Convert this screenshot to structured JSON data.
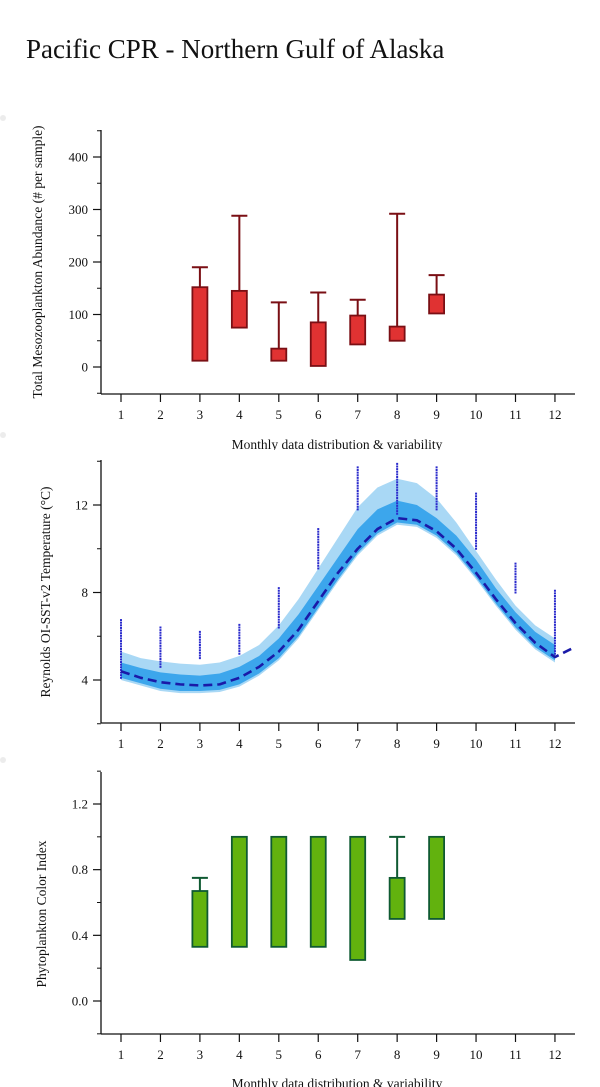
{
  "page": {
    "title": "Pacific CPR - Northern Gulf of Alaska"
  },
  "chart_data": [
    {
      "type": "box",
      "title": "",
      "ylabel": "Total Mesozooplankton Abundance (# per sample)",
      "xlabel": "Monthly data distribution & variability",
      "ylim": [
        -50,
        450
      ],
      "yticks": [
        0,
        100,
        200,
        300,
        400
      ],
      "categories": [
        "1",
        "2",
        "3",
        "4",
        "5",
        "6",
        "7",
        "8",
        "9",
        "10",
        "11",
        "12"
      ],
      "colors": {
        "fill": "#e03232",
        "stroke": "#7a0f14"
      },
      "boxes": [
        {
          "x": 3,
          "q1": 12,
          "q3": 152,
          "whisker_high": 190
        },
        {
          "x": 4,
          "q1": 75,
          "q3": 145,
          "whisker_high": 288
        },
        {
          "x": 5,
          "q1": 12,
          "q3": 35,
          "whisker_high": 123
        },
        {
          "x": 6,
          "q1": 2,
          "q3": 85,
          "whisker_high": 142
        },
        {
          "x": 7,
          "q1": 43,
          "q3": 98,
          "whisker_high": 128
        },
        {
          "x": 8,
          "q1": 50,
          "q3": 77,
          "whisker_high": 292
        },
        {
          "x": 9,
          "q1": 102,
          "q3": 138,
          "whisker_high": 175
        }
      ]
    },
    {
      "type": "line",
      "title": "",
      "ylabel": "Reynolds OI-SST-v2 Temperature (°C)",
      "xlabel": "",
      "ylim": [
        2,
        14
      ],
      "yticks": [
        4,
        8,
        12
      ],
      "categories": [
        "1",
        "2",
        "3",
        "4",
        "5",
        "6",
        "7",
        "8",
        "9",
        "10",
        "11",
        "12"
      ],
      "colors": {
        "outer_band": "#a9d8f5",
        "inner_band": "#3ca6ec",
        "mean_line": "#1a1aa8",
        "points": "#2b2bcc"
      },
      "mean": {
        "x": [
          1,
          1.5,
          2,
          2.5,
          3,
          3.5,
          4,
          4.5,
          5,
          5.5,
          6,
          6.5,
          7,
          7.5,
          8,
          8.5,
          9,
          9.5,
          10,
          10.5,
          11,
          11.5,
          12,
          12.5
        ],
        "y": [
          4.4,
          4.1,
          3.9,
          3.8,
          3.75,
          3.8,
          4.1,
          4.6,
          5.3,
          6.3,
          7.6,
          8.9,
          10.0,
          10.9,
          11.4,
          11.3,
          10.8,
          10.0,
          8.9,
          7.7,
          6.6,
          5.7,
          5.05,
          5.5
        ]
      },
      "inner_band": {
        "x": [
          1,
          1.5,
          2,
          2.5,
          3,
          3.5,
          4,
          4.5,
          5,
          5.5,
          6,
          6.5,
          7,
          7.5,
          8,
          8.5,
          9,
          9.5,
          10,
          10.5,
          11,
          11.5,
          12
        ],
        "low": [
          4.1,
          3.85,
          3.6,
          3.5,
          3.5,
          3.55,
          3.8,
          4.3,
          5.0,
          6.0,
          7.3,
          8.6,
          9.8,
          10.7,
          11.2,
          11.1,
          10.6,
          9.8,
          8.7,
          7.5,
          6.4,
          5.5,
          4.9
        ],
        "high": [
          4.8,
          4.55,
          4.35,
          4.25,
          4.2,
          4.3,
          4.6,
          5.1,
          5.9,
          7.0,
          8.3,
          9.6,
          10.9,
          11.8,
          12.2,
          12.0,
          11.4,
          10.6,
          9.5,
          8.2,
          7.1,
          6.2,
          5.6
        ]
      },
      "outer_band": {
        "x": [
          1,
          1.5,
          2,
          2.5,
          3,
          3.5,
          4,
          4.5,
          5,
          5.5,
          6,
          6.5,
          7,
          7.5,
          8,
          8.5,
          9,
          9.5,
          10,
          10.5,
          11,
          11.5,
          12
        ],
        "low": [
          4.0,
          3.75,
          3.5,
          3.4,
          3.4,
          3.45,
          3.7,
          4.2,
          4.9,
          5.9,
          7.2,
          8.5,
          9.7,
          10.6,
          11.1,
          11.0,
          10.5,
          9.7,
          8.6,
          7.4,
          6.3,
          5.4,
          4.8
        ],
        "high": [
          5.3,
          5.0,
          4.85,
          4.75,
          4.7,
          4.8,
          5.1,
          5.6,
          6.5,
          7.7,
          9.1,
          10.5,
          11.9,
          12.8,
          13.2,
          13.0,
          12.3,
          11.2,
          9.9,
          8.6,
          7.4,
          6.5,
          5.9
        ]
      },
      "observation_ranges": [
        {
          "x": 1,
          "low": 4.1,
          "high": 6.8
        },
        {
          "x": 2,
          "low": 4.6,
          "high": 6.4
        },
        {
          "x": 3,
          "low": 5.0,
          "high": 6.2
        },
        {
          "x": 4,
          "low": 5.2,
          "high": 6.6
        },
        {
          "x": 5,
          "low": 6.4,
          "high": 8.3
        },
        {
          "x": 6,
          "low": 9.1,
          "high": 10.9
        },
        {
          "x": 7,
          "low": 11.8,
          "high": 13.8
        },
        {
          "x": 8,
          "low": 11.6,
          "high": 13.9
        },
        {
          "x": 9,
          "low": 11.8,
          "high": 13.8
        },
        {
          "x": 10,
          "low": 10.0,
          "high": 12.6
        },
        {
          "x": 11,
          "low": 8.0,
          "high": 9.4
        },
        {
          "x": 12,
          "low": 5.2,
          "high": 8.1
        }
      ]
    },
    {
      "type": "box",
      "title": "",
      "ylabel": "Phytoplankton Color Index",
      "xlabel": "Monthly data distribution & variability",
      "ylim": [
        -0.2,
        1.4
      ],
      "yticks": [
        0.0,
        0.4,
        0.8,
        1.2
      ],
      "ytick_labels": [
        "0.0",
        "0.4",
        "0.8",
        "1.2"
      ],
      "categories": [
        "1",
        "2",
        "3",
        "4",
        "5",
        "6",
        "7",
        "8",
        "9",
        "10",
        "11",
        "12"
      ],
      "colors": {
        "fill": "#62b20e",
        "stroke": "#0f5a32"
      },
      "boxes": [
        {
          "x": 3,
          "q1": 0.33,
          "q3": 0.67,
          "whisker_high": 0.75
        },
        {
          "x": 4,
          "q1": 0.33,
          "q3": 1.0
        },
        {
          "x": 5,
          "q1": 0.33,
          "q3": 1.0
        },
        {
          "x": 6,
          "q1": 0.33,
          "q3": 1.0
        },
        {
          "x": 7,
          "q1": 0.25,
          "q3": 1.0
        },
        {
          "x": 8,
          "q1": 0.5,
          "q3": 0.75,
          "whisker_high": 1.0
        },
        {
          "x": 9,
          "q1": 0.5,
          "q3": 1.0
        }
      ]
    }
  ]
}
